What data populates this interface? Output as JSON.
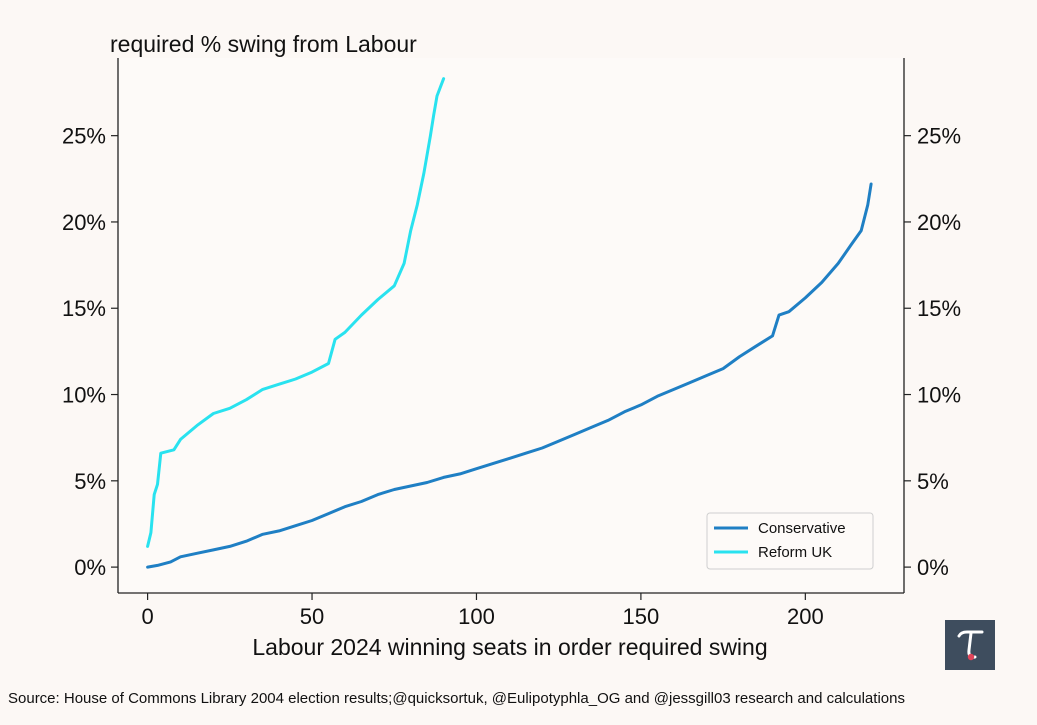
{
  "chart_data": {
    "type": "line",
    "title": "required % swing from Labour",
    "xlabel": "Labour 2024 winning seats in order required swing",
    "ylabel": "required % swing from Labour",
    "xlim": [
      -9,
      230
    ],
    "ylim": [
      -1.5,
      29.5
    ],
    "x_ticks": [
      0,
      50,
      100,
      150,
      200
    ],
    "x_tick_labels": [
      "0",
      "50",
      "100",
      "150",
      "200"
    ],
    "y_ticks": [
      0,
      5,
      10,
      15,
      20,
      25
    ],
    "y_tick_labels": [
      "0%",
      "5%",
      "10%",
      "15%",
      "20%",
      "25%"
    ],
    "grid": false,
    "legend_position": "lower-right",
    "series": [
      {
        "name": "Conservative",
        "color": "#1f7fc4",
        "x": [
          0,
          3,
          7,
          10,
          15,
          20,
          25,
          30,
          35,
          40,
          45,
          50,
          55,
          60,
          65,
          70,
          75,
          80,
          85,
          90,
          95,
          100,
          105,
          110,
          115,
          120,
          125,
          130,
          135,
          140,
          145,
          150,
          155,
          160,
          165,
          170,
          175,
          180,
          185,
          190,
          192,
          195,
          200,
          205,
          210,
          214,
          217,
          219,
          220
        ],
        "y": [
          0,
          0.1,
          0.3,
          0.6,
          0.8,
          1.0,
          1.2,
          1.5,
          1.9,
          2.1,
          2.4,
          2.7,
          3.1,
          3.5,
          3.8,
          4.2,
          4.5,
          4.7,
          4.9,
          5.2,
          5.4,
          5.7,
          6.0,
          6.3,
          6.6,
          6.9,
          7.3,
          7.7,
          8.1,
          8.5,
          9.0,
          9.4,
          9.9,
          10.3,
          10.7,
          11.1,
          11.5,
          12.2,
          12.8,
          13.4,
          14.6,
          14.8,
          15.6,
          16.5,
          17.6,
          18.7,
          19.5,
          21.0,
          22.2
        ]
      },
      {
        "name": "Reform UK",
        "color": "#29e2ef",
        "x": [
          0,
          1,
          2,
          3,
          4,
          8,
          10,
          15,
          20,
          25,
          30,
          35,
          40,
          45,
          50,
          55,
          57,
          60,
          65,
          70,
          75,
          78,
          80,
          82,
          84,
          86,
          87,
          88,
          89,
          90
        ],
        "y": [
          1.2,
          2.0,
          4.2,
          4.8,
          6.6,
          6.8,
          7.4,
          8.2,
          8.9,
          9.2,
          9.7,
          10.3,
          10.6,
          10.9,
          11.3,
          11.8,
          13.2,
          13.6,
          14.6,
          15.5,
          16.3,
          17.6,
          19.5,
          21.0,
          22.8,
          25.0,
          26.2,
          27.3,
          27.8,
          28.3
        ]
      }
    ],
    "source": "Source: House of Commons Library 2004 election results;@quicksortuk, @Eulipotyphla_OG and @jessgill03 research and calculations",
    "logo_glyph": "τ"
  }
}
